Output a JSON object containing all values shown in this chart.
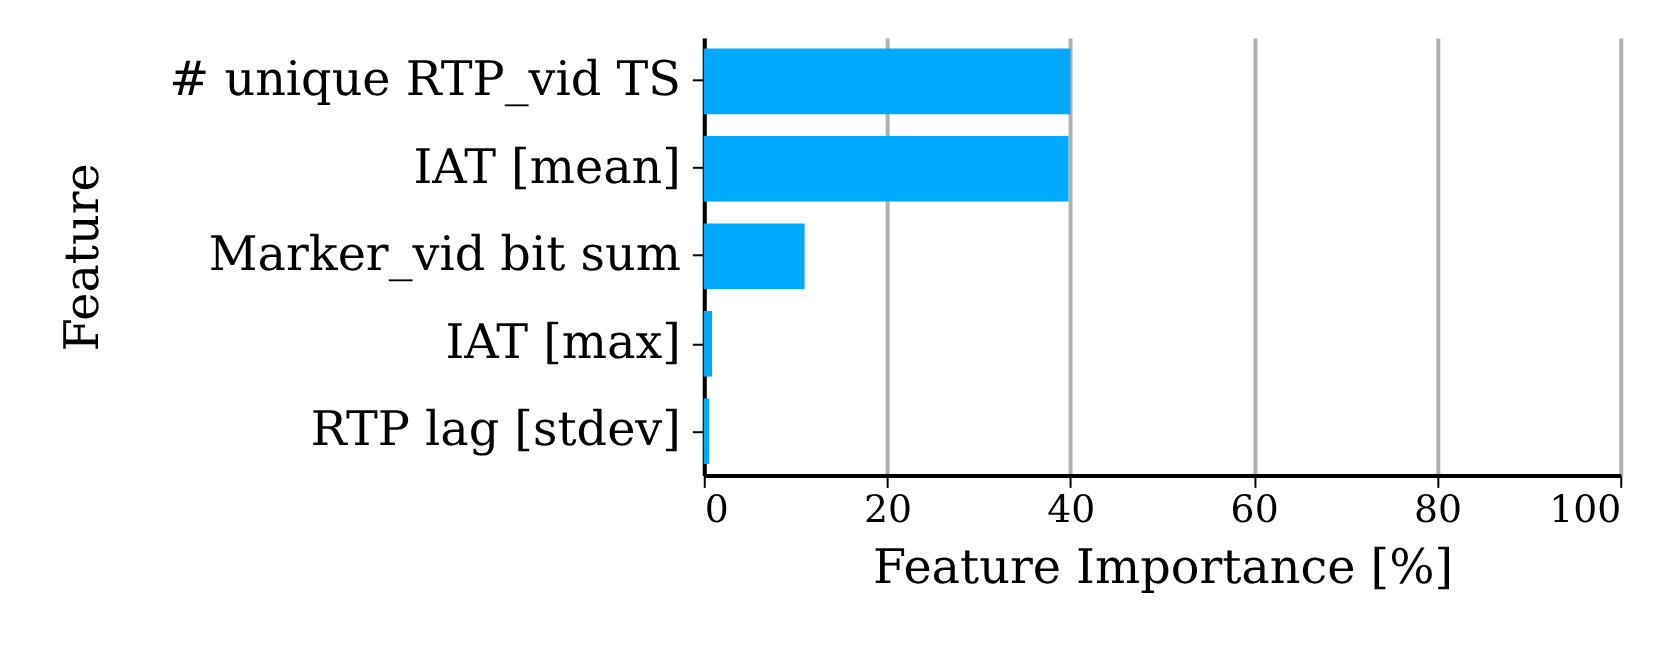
{
  "chart_data": {
    "type": "bar",
    "orientation": "horizontal",
    "categories": [
      "# unique RTP_vid TS",
      "IAT [mean]",
      "Marker_vid bit sum",
      "IAT [max]",
      "RTP lag [stdev]"
    ],
    "values": [
      40.0,
      39.8,
      11.0,
      0.9,
      0.6
    ],
    "color": "#00aaff",
    "xlim": [
      0,
      100
    ],
    "xticks": [
      0,
      20,
      40,
      60,
      80,
      100
    ],
    "xlabel": "Feature Importance [%]",
    "ylabel": "Feature",
    "grid": "x"
  }
}
